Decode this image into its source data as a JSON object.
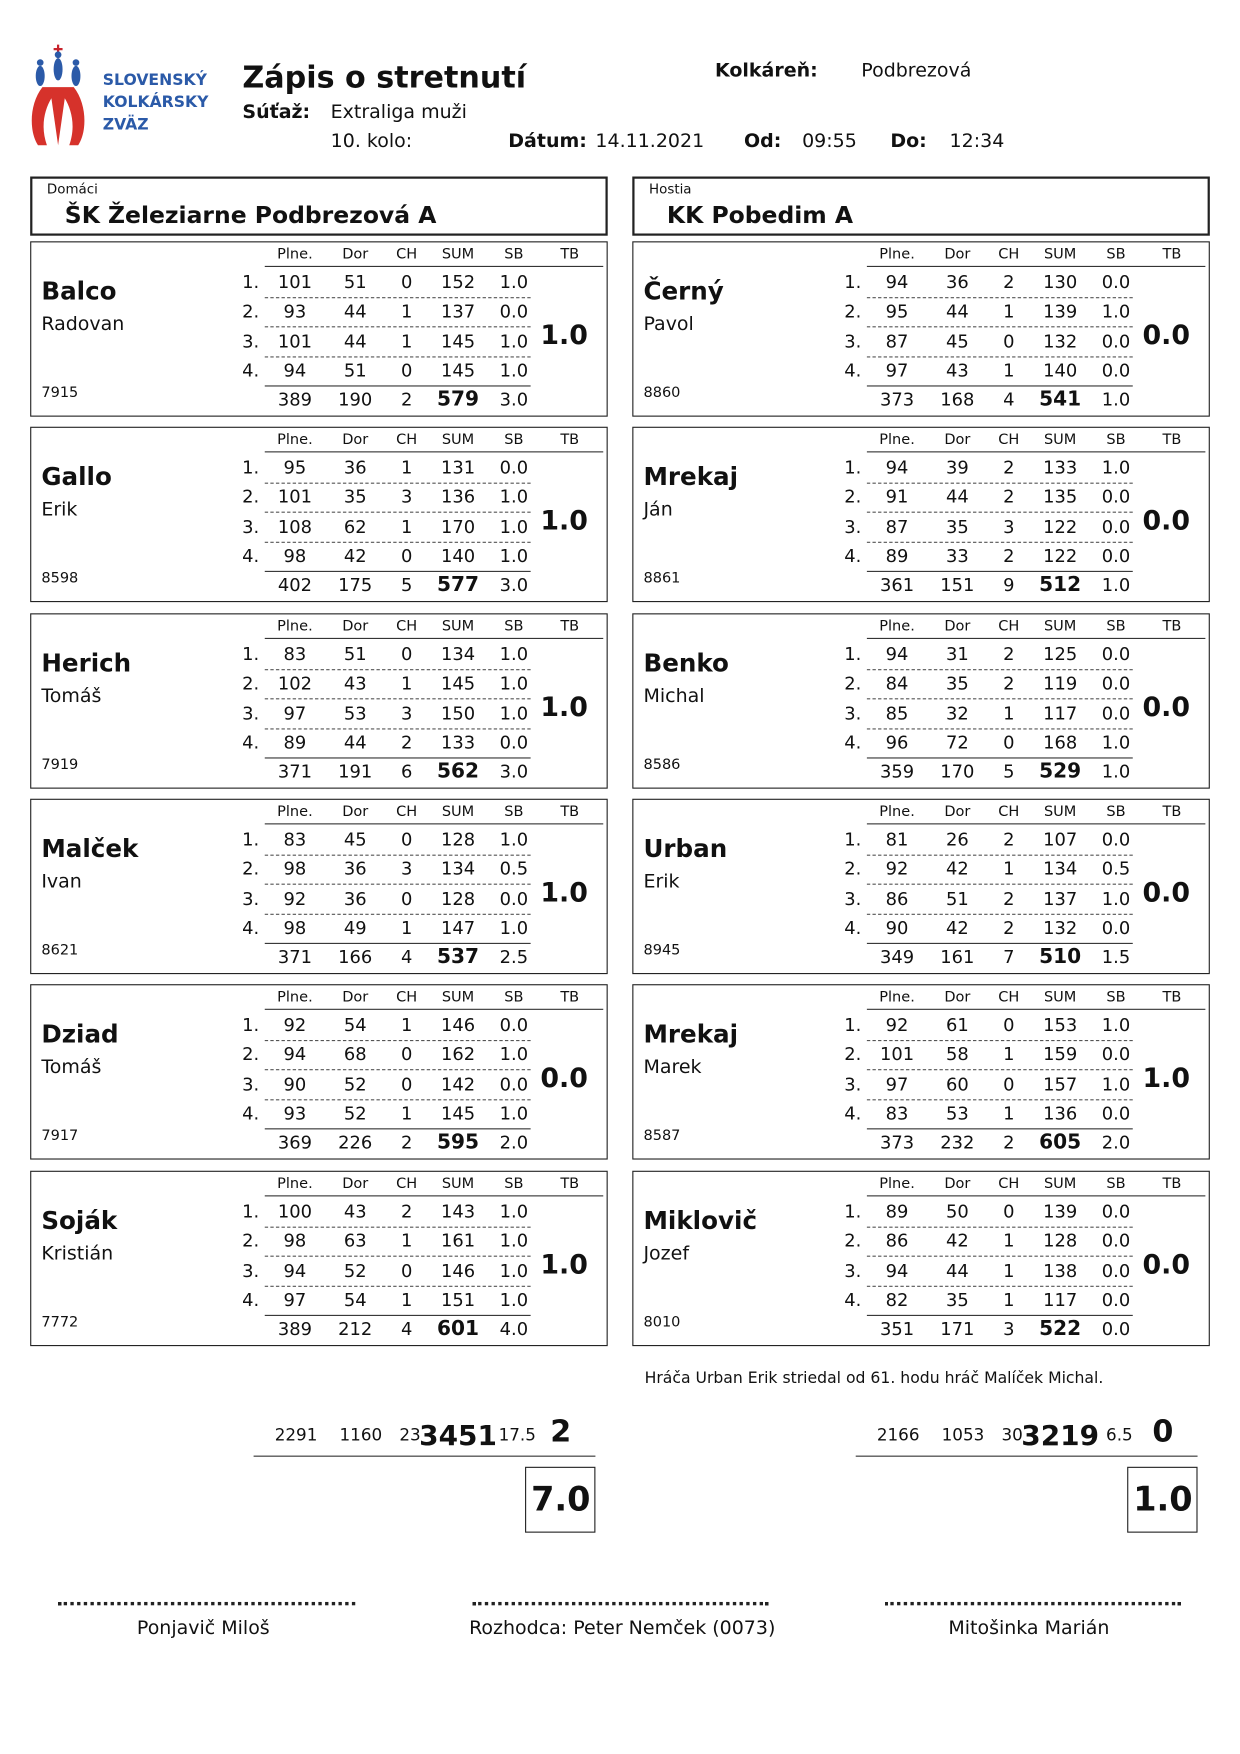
{
  "header": {
    "logo_lines": [
      "SLOVENSKÝ",
      "KOLKÁRSKY",
      "ZVÄZ"
    ],
    "title": "Zápis o stretnutí",
    "competition_label": "Súťaž:",
    "competition": "Extraliga muži",
    "round": "10. kolo:",
    "date_label": "Dátum:",
    "date": "14.11.2021",
    "start_label": "Od:",
    "start": "09:55",
    "end_label": "Do:",
    "end": "12:34",
    "venue_label": "Kolkáreň:",
    "venue": "Podbrezová"
  },
  "columns": [
    "Plne.",
    "Dor",
    "CH",
    "SUM",
    "SB",
    "TB"
  ],
  "row_labels": [
    "1.",
    "2.",
    "3.",
    "4."
  ],
  "teams": [
    {
      "label": "Domáci",
      "name": "ŠK Železiarne Podbrezová A",
      "players": [
        {
          "surname": "Balco",
          "first_name": "Radovan",
          "id": 7915,
          "rows": [
            [
              101,
              51,
              0,
              152,
              "1.0"
            ],
            [
              93,
              44,
              1,
              137,
              "0.0"
            ],
            [
              101,
              44,
              1,
              145,
              "1.0"
            ],
            [
              94,
              51,
              0,
              145,
              "1.0"
            ]
          ],
          "total": [
            389,
            190,
            2,
            579,
            "3.0"
          ],
          "tb": "1.0"
        },
        {
          "surname": "Gallo",
          "first_name": "Erik",
          "id": 8598,
          "rows": [
            [
              95,
              36,
              1,
              131,
              "0.0"
            ],
            [
              101,
              35,
              3,
              136,
              "1.0"
            ],
            [
              108,
              62,
              1,
              170,
              "1.0"
            ],
            [
              98,
              42,
              0,
              140,
              "1.0"
            ]
          ],
          "total": [
            402,
            175,
            5,
            577,
            "3.0"
          ],
          "tb": "1.0"
        },
        {
          "surname": "Herich",
          "first_name": "Tomáš",
          "id": 7919,
          "rows": [
            [
              83,
              51,
              0,
              134,
              "1.0"
            ],
            [
              102,
              43,
              1,
              145,
              "1.0"
            ],
            [
              97,
              53,
              3,
              150,
              "1.0"
            ],
            [
              89,
              44,
              2,
              133,
              "0.0"
            ]
          ],
          "total": [
            371,
            191,
            6,
            562,
            "3.0"
          ],
          "tb": "1.0"
        },
        {
          "surname": "Malček",
          "first_name": "Ivan",
          "id": 8621,
          "rows": [
            [
              83,
              45,
              0,
              128,
              "1.0"
            ],
            [
              98,
              36,
              3,
              134,
              "0.5"
            ],
            [
              92,
              36,
              0,
              128,
              "0.0"
            ],
            [
              98,
              49,
              1,
              147,
              "1.0"
            ]
          ],
          "total": [
            371,
            166,
            4,
            537,
            "2.5"
          ],
          "tb": "1.0"
        },
        {
          "surname": "Dziad",
          "first_name": "Tomáš",
          "id": 7917,
          "rows": [
            [
              92,
              54,
              1,
              146,
              "0.0"
            ],
            [
              94,
              68,
              0,
              162,
              "1.0"
            ],
            [
              90,
              52,
              0,
              142,
              "0.0"
            ],
            [
              93,
              52,
              1,
              145,
              "1.0"
            ]
          ],
          "total": [
            369,
            226,
            2,
            595,
            "2.0"
          ],
          "tb": "0.0"
        },
        {
          "surname": "Soják",
          "first_name": "Kristián",
          "id": 7772,
          "rows": [
            [
              100,
              43,
              2,
              143,
              "1.0"
            ],
            [
              98,
              63,
              1,
              161,
              "1.0"
            ],
            [
              94,
              52,
              0,
              146,
              "1.0"
            ],
            [
              97,
              54,
              1,
              151,
              "1.0"
            ]
          ],
          "total": [
            389,
            212,
            4,
            601,
            "4.0"
          ],
          "tb": "1.0"
        }
      ],
      "totals": {
        "values": [
          2291,
          1160,
          23,
          3451,
          "17.5"
        ],
        "points": 2,
        "result": "7.0"
      }
    },
    {
      "label": "Hostia",
      "name": "KK Pobedim A",
      "players": [
        {
          "surname": "Černý",
          "first_name": "Pavol",
          "id": 8860,
          "rows": [
            [
              94,
              36,
              2,
              130,
              "0.0"
            ],
            [
              95,
              44,
              1,
              139,
              "1.0"
            ],
            [
              87,
              45,
              0,
              132,
              "0.0"
            ],
            [
              97,
              43,
              1,
              140,
              "0.0"
            ]
          ],
          "total": [
            373,
            168,
            4,
            541,
            "1.0"
          ],
          "tb": "0.0"
        },
        {
          "surname": "Mrekaj",
          "first_name": "Ján",
          "id": 8861,
          "rows": [
            [
              94,
              39,
              2,
              133,
              "1.0"
            ],
            [
              91,
              44,
              2,
              135,
              "0.0"
            ],
            [
              87,
              35,
              3,
              122,
              "0.0"
            ],
            [
              89,
              33,
              2,
              122,
              "0.0"
            ]
          ],
          "total": [
            361,
            151,
            9,
            512,
            "1.0"
          ],
          "tb": "0.0"
        },
        {
          "surname": "Benko",
          "first_name": "Michal",
          "id": 8586,
          "rows": [
            [
              94,
              31,
              2,
              125,
              "0.0"
            ],
            [
              84,
              35,
              2,
              119,
              "0.0"
            ],
            [
              85,
              32,
              1,
              117,
              "0.0"
            ],
            [
              96,
              72,
              0,
              168,
              "1.0"
            ]
          ],
          "total": [
            359,
            170,
            5,
            529,
            "1.0"
          ],
          "tb": "0.0"
        },
        {
          "surname": "Urban",
          "first_name": "Erik",
          "id": 8945,
          "rows": [
            [
              81,
              26,
              2,
              107,
              "0.0"
            ],
            [
              92,
              42,
              1,
              134,
              "0.5"
            ],
            [
              86,
              51,
              2,
              137,
              "1.0"
            ],
            [
              90,
              42,
              2,
              132,
              "0.0"
            ]
          ],
          "total": [
            349,
            161,
            7,
            510,
            "1.5"
          ],
          "tb": "0.0"
        },
        {
          "surname": "Mrekaj",
          "first_name": "Marek",
          "id": 8587,
          "rows": [
            [
              92,
              61,
              0,
              153,
              "1.0"
            ],
            [
              101,
              58,
              1,
              159,
              "0.0"
            ],
            [
              97,
              60,
              0,
              157,
              "1.0"
            ],
            [
              83,
              53,
              1,
              136,
              "0.0"
            ]
          ],
          "total": [
            373,
            232,
            2,
            605,
            "2.0"
          ],
          "tb": "1.0"
        },
        {
          "surname": "Miklovič",
          "first_name": "Jozef",
          "id": 8010,
          "rows": [
            [
              89,
              50,
              0,
              139,
              "0.0"
            ],
            [
              86,
              42,
              1,
              128,
              "0.0"
            ],
            [
              94,
              44,
              1,
              138,
              "0.0"
            ],
            [
              82,
              35,
              1,
              117,
              "0.0"
            ]
          ],
          "total": [
            351,
            171,
            3,
            522,
            "0.0"
          ],
          "tb": "0.0"
        }
      ],
      "totals": {
        "values": [
          2166,
          1053,
          30,
          3219,
          "6.5"
        ],
        "points": 0,
        "result": "1.0"
      }
    }
  ],
  "note": "Hráča Urban Erik striedal od 61. hodu hráč Malíček Michal.",
  "signatures": [
    "Ponjavič Miloš",
    "Rozhodca: Peter Nemček (0073)",
    "Mitošinka Marián"
  ]
}
